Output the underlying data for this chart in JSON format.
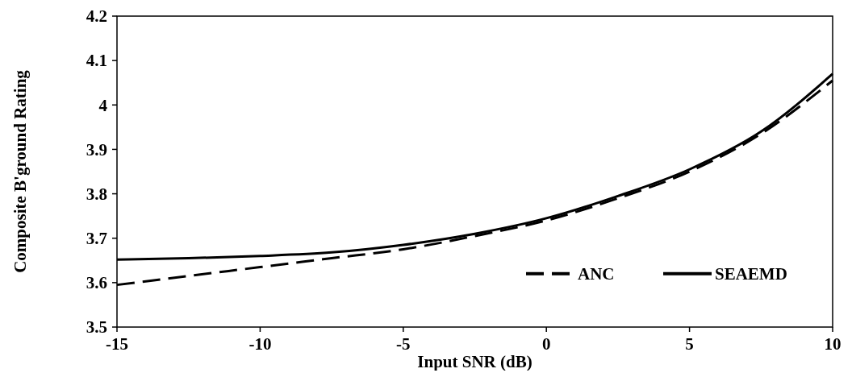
{
  "chart_data": {
    "type": "line",
    "xlabel": "Input SNR (dB)",
    "ylabel": "Composite B'ground Rating",
    "x": [
      -15,
      -12.5,
      -10,
      -7.5,
      -5,
      -2.5,
      0,
      2.5,
      5,
      7.5,
      10
    ],
    "series": [
      {
        "name": "ANC",
        "color": "#000000",
        "line_style": "dashed",
        "values": [
          3.595,
          3.615,
          3.635,
          3.655,
          3.675,
          3.705,
          3.74,
          3.79,
          3.85,
          3.935,
          4.055
        ]
      },
      {
        "name": "SEAEMD",
        "color": "#000000",
        "line_style": "solid",
        "values": [
          3.652,
          3.655,
          3.66,
          3.668,
          3.685,
          3.71,
          3.745,
          3.795,
          3.855,
          3.94,
          4.07
        ]
      }
    ],
    "xlim": [
      -15,
      10
    ],
    "xticks": [
      -15,
      -10,
      -5,
      0,
      5,
      10
    ],
    "ylim": [
      3.5,
      4.2
    ],
    "yticks": [
      3.5,
      3.6,
      3.7,
      3.8,
      3.9,
      4,
      4.1,
      4.2
    ],
    "grid": false,
    "legend": "bottom right",
    "marker": "none"
  }
}
